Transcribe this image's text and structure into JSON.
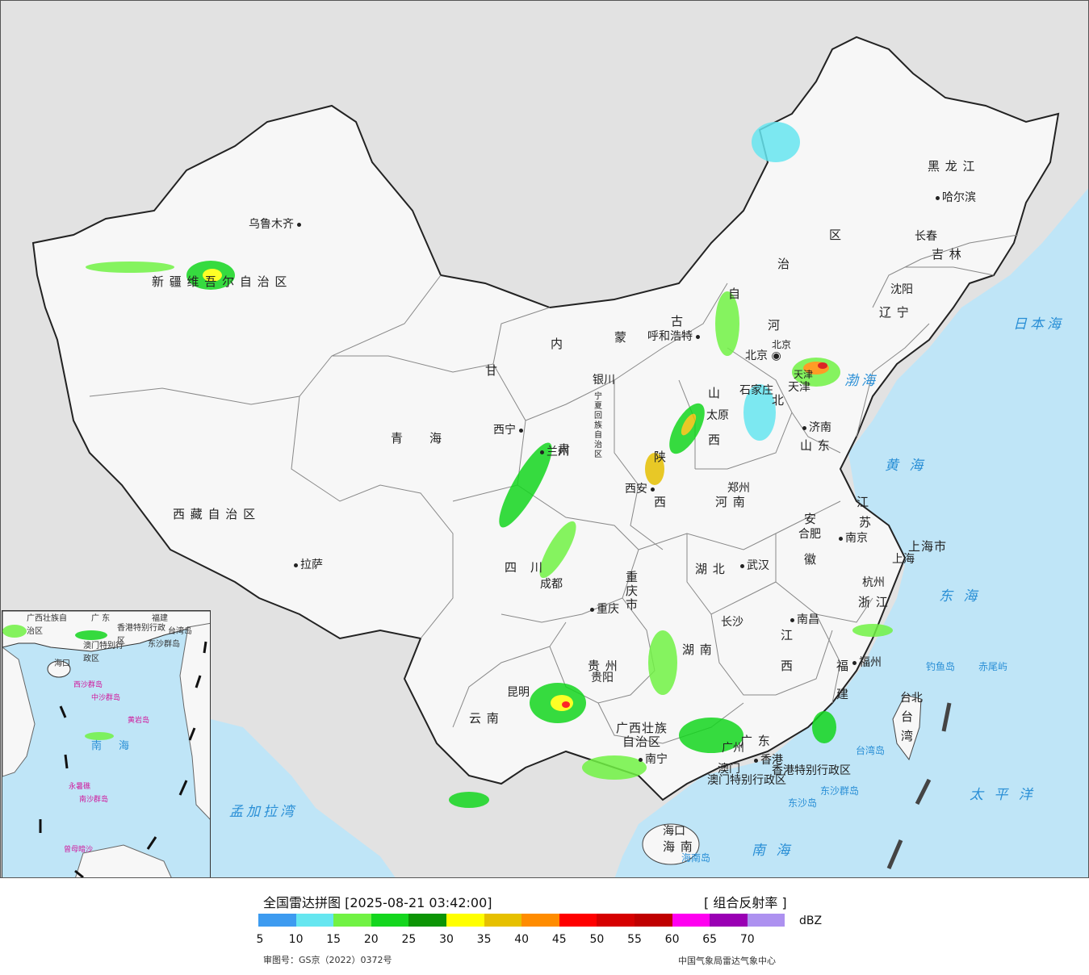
{
  "map": {
    "provinces": [
      {
        "id": "xinjiang",
        "text": "新 疆 维 吾 尔 自 治 区"
      },
      {
        "id": "xizang",
        "text": "西 藏 自 治 区"
      },
      {
        "id": "qinghai",
        "text": "青　　海"
      },
      {
        "id": "gansu",
        "text": "甘"
      },
      {
        "id": "gansu2",
        "text": "肃"
      },
      {
        "id": "neimenggu1",
        "text": "内"
      },
      {
        "id": "neimenggu2",
        "text": "蒙"
      },
      {
        "id": "neimenggu3",
        "text": "古"
      },
      {
        "id": "neimenggu4",
        "text": "自"
      },
      {
        "id": "neimenggu5",
        "text": "治"
      },
      {
        "id": "neimenggu6",
        "text": "区"
      },
      {
        "id": "heilongjiang",
        "text": "黑 龙 江"
      },
      {
        "id": "jilin",
        "text": "吉 林"
      },
      {
        "id": "liaoning",
        "text": "辽 宁"
      },
      {
        "id": "hebei1",
        "text": "河"
      },
      {
        "id": "hebei2",
        "text": "北"
      },
      {
        "id": "shanxi1",
        "text": "山"
      },
      {
        "id": "shanxi2",
        "text": "西"
      },
      {
        "id": "shaanxi1",
        "text": "陕"
      },
      {
        "id": "shaanxi2",
        "text": "西"
      },
      {
        "id": "ningxia",
        "text": "宁夏回族自治区"
      },
      {
        "id": "shandong",
        "text": "山 东"
      },
      {
        "id": "henan",
        "text": "河 南"
      },
      {
        "id": "jiangsu1",
        "text": "江"
      },
      {
        "id": "jiangsu2",
        "text": "苏"
      },
      {
        "id": "anhui1",
        "text": "安"
      },
      {
        "id": "anhui2",
        "text": "徽"
      },
      {
        "id": "shanghai",
        "text": "上海市"
      },
      {
        "id": "hubei",
        "text": "湖 北"
      },
      {
        "id": "sichuan",
        "text": "四　川"
      },
      {
        "id": "chongqing",
        "text": "重庆市"
      },
      {
        "id": "zhejiang",
        "text": "浙 江"
      },
      {
        "id": "jiangxi1",
        "text": "江"
      },
      {
        "id": "jiangxi2",
        "text": "西"
      },
      {
        "id": "hunan",
        "text": "湖 南"
      },
      {
        "id": "fujian1",
        "text": "福"
      },
      {
        "id": "fujian2",
        "text": "建"
      },
      {
        "id": "guizhou",
        "text": "贵 州"
      },
      {
        "id": "yunnan",
        "text": "云 南"
      },
      {
        "id": "guangxi",
        "text": "广西壮族"
      },
      {
        "id": "guangxi2",
        "text": "自治区"
      },
      {
        "id": "guangdong",
        "text": "广 东"
      },
      {
        "id": "hainan",
        "text": "海 南"
      },
      {
        "id": "taiwan1",
        "text": "台"
      },
      {
        "id": "taiwan2",
        "text": "湾"
      },
      {
        "id": "beijingshi",
        "text": "北京"
      },
      {
        "id": "tianjinshi",
        "text": "天津"
      },
      {
        "id": "xianggang",
        "text": "香港特别行政区"
      },
      {
        "id": "aomen",
        "text": "澳门特别行政区"
      }
    ],
    "cities": [
      {
        "id": "urumqi",
        "text": "乌鲁木齐"
      },
      {
        "id": "lhasa",
        "text": "拉萨"
      },
      {
        "id": "xining",
        "text": "西宁"
      },
      {
        "id": "lanzhou",
        "text": "兰州"
      },
      {
        "id": "yinchuan",
        "text": "银川"
      },
      {
        "id": "hohhot",
        "text": "呼和浩特"
      },
      {
        "id": "harbin",
        "text": "哈尔滨"
      },
      {
        "id": "changchun",
        "text": "长春"
      },
      {
        "id": "shenyang",
        "text": "沈阳"
      },
      {
        "id": "shijiazhuang",
        "text": "石家庄"
      },
      {
        "id": "taiyuan",
        "text": "太原"
      },
      {
        "id": "jinan",
        "text": "济南"
      },
      {
        "id": "xian",
        "text": "西安"
      },
      {
        "id": "zhengzhou",
        "text": "郑州"
      },
      {
        "id": "hefei",
        "text": "合肥"
      },
      {
        "id": "nanjing",
        "text": "南京"
      },
      {
        "id": "shanghaicity",
        "text": "上海"
      },
      {
        "id": "hangzhou",
        "text": "杭州"
      },
      {
        "id": "wuhan",
        "text": "武汉"
      },
      {
        "id": "chengdu",
        "text": "成都"
      },
      {
        "id": "chongqingcity",
        "text": "重庆"
      },
      {
        "id": "changsha",
        "text": "长沙"
      },
      {
        "id": "nanchang",
        "text": "南昌"
      },
      {
        "id": "fuzhou",
        "text": "福州"
      },
      {
        "id": "guiyang",
        "text": "贵阳"
      },
      {
        "id": "kunming",
        "text": "昆明"
      },
      {
        "id": "nanning",
        "text": "南宁"
      },
      {
        "id": "guangzhou",
        "text": "广州"
      },
      {
        "id": "hongkong",
        "text": "香港"
      },
      {
        "id": "macau",
        "text": "澳门"
      },
      {
        "id": "haikou",
        "text": "海口"
      },
      {
        "id": "taibei",
        "text": "台北"
      },
      {
        "id": "beijing",
        "text": "北京"
      },
      {
        "id": "tianjin",
        "text": "天津"
      }
    ],
    "seas": [
      {
        "id": "riben",
        "text": "日本海"
      },
      {
        "id": "bohai",
        "text": "渤海"
      },
      {
        "id": "huanghai",
        "text": "黄 海"
      },
      {
        "id": "donghai",
        "text": "东 海"
      },
      {
        "id": "taipingyang",
        "text": "太 平 洋"
      },
      {
        "id": "nanhai",
        "text": "南 海"
      },
      {
        "id": "mengjiala",
        "text": "孟加拉湾"
      }
    ],
    "islands": [
      {
        "id": "diaoyu",
        "text": "钓鱼岛"
      },
      {
        "id": "chiwei",
        "text": "赤尾屿"
      },
      {
        "id": "taiwandao",
        "text": "台湾岛"
      },
      {
        "id": "dongsha",
        "text": "东沙群岛"
      },
      {
        "id": "dongshadao",
        "text": "东沙岛"
      },
      {
        "id": "hainandao",
        "text": "海南岛"
      }
    ],
    "inset_labels": [
      {
        "id": "i-guangxi",
        "text": "广西壮族自治区"
      },
      {
        "id": "i-guangdong",
        "text": "广 东"
      },
      {
        "id": "i-fujian",
        "text": "福建"
      },
      {
        "id": "i-taiwan",
        "text": "台湾岛"
      },
      {
        "id": "i-hk",
        "text": "香港特别行政区"
      },
      {
        "id": "i-macau",
        "text": "澳门特别行政区"
      },
      {
        "id": "i-dongsha",
        "text": "东沙群岛"
      },
      {
        "id": "i-hainan",
        "text": "海口"
      },
      {
        "id": "i-xisha",
        "text": "西沙群岛"
      },
      {
        "id": "i-zhongsha",
        "text": "中沙群岛"
      },
      {
        "id": "i-huangyan",
        "text": "黄岩岛"
      },
      {
        "id": "i-yongshu",
        "text": "永暑礁"
      },
      {
        "id": "i-nansha",
        "text": "南沙群岛"
      },
      {
        "id": "i-zengmu",
        "text": "曾母暗沙"
      },
      {
        "id": "i-sea",
        "text": "南　海"
      }
    ]
  },
  "legend": {
    "title": "全国雷达拼图 [2025-08-21 03:42:00]",
    "product": "[ 组合反射率 ]",
    "unit": "dBZ",
    "ticks": [
      "5",
      "10",
      "15",
      "20",
      "25",
      "30",
      "35",
      "40",
      "45",
      "50",
      "55",
      "60",
      "65",
      "70"
    ],
    "colors": [
      "#3d9bf0",
      "#66e6f0",
      "#71f244",
      "#14d61e",
      "#0c9405",
      "#ffff00",
      "#e6c000",
      "#ff8c00",
      "#ff0000",
      "#d60000",
      "#c00000",
      "#ff00f0",
      "#9a00b4",
      "#ad91f0"
    ],
    "approval": "审图号：GS京（2022）0372号",
    "agency": "中国气象局雷达气象中心"
  }
}
